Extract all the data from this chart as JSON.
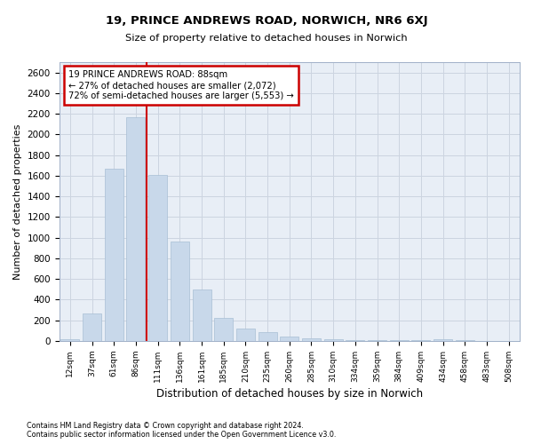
{
  "title1": "19, PRINCE ANDREWS ROAD, NORWICH, NR6 6XJ",
  "title2": "Size of property relative to detached houses in Norwich",
  "xlabel": "Distribution of detached houses by size in Norwich",
  "ylabel": "Number of detached properties",
  "footnote1": "Contains HM Land Registry data © Crown copyright and database right 2024.",
  "footnote2": "Contains public sector information licensed under the Open Government Licence v3.0.",
  "annotation_line1": "19 PRINCE ANDREWS ROAD: 88sqm",
  "annotation_line2": "← 27% of detached houses are smaller (2,072)",
  "annotation_line3": "72% of semi-detached houses are larger (5,553) →",
  "bar_color": "#c8d8ea",
  "bar_edge_color": "#a8bfd4",
  "red_line_color": "#cc0000",
  "annotation_box_edgecolor": "#cc0000",
  "categories": [
    "12sqm",
    "37sqm",
    "61sqm",
    "86sqm",
    "111sqm",
    "136sqm",
    "161sqm",
    "185sqm",
    "210sqm",
    "235sqm",
    "260sqm",
    "285sqm",
    "310sqm",
    "334sqm",
    "359sqm",
    "384sqm",
    "409sqm",
    "434sqm",
    "458sqm",
    "483sqm",
    "508sqm"
  ],
  "values": [
    18,
    265,
    1670,
    2170,
    1610,
    960,
    500,
    225,
    120,
    88,
    42,
    25,
    18,
    10,
    8,
    6,
    5,
    14,
    5,
    3,
    2
  ],
  "red_line_x": 3.5,
  "ylim": [
    0,
    2700
  ],
  "yticks": [
    0,
    200,
    400,
    600,
    800,
    1000,
    1200,
    1400,
    1600,
    1800,
    2000,
    2200,
    2400,
    2600
  ],
  "grid_color": "#ccd4e0",
  "bg_color": "#e8eef6",
  "fig_width": 6.0,
  "fig_height": 5.0,
  "dpi": 100
}
